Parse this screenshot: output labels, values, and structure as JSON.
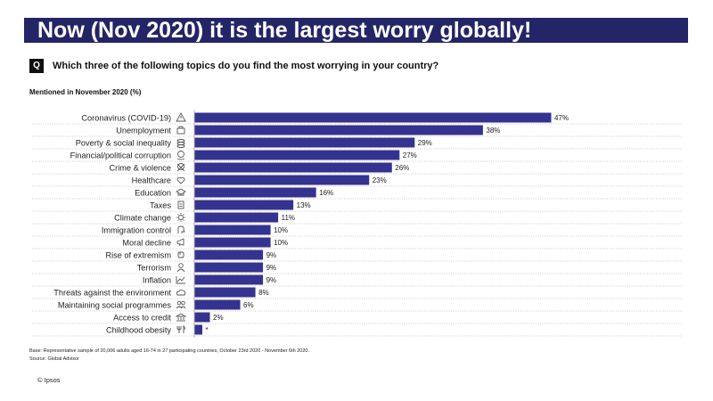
{
  "header": {
    "banner_title": "Now (Nov 2020) it is the largest worry globally!",
    "q_badge": "Q",
    "question": "Which three of the following topics do you find the most worrying in your country?",
    "subtitle": "Mentioned in November 2020 (%)"
  },
  "chart_data": {
    "type": "bar",
    "orientation": "horizontal",
    "title": "",
    "xlabel": "",
    "ylabel": "",
    "xlim": [
      0,
      50
    ],
    "grid": false,
    "legend": "none",
    "bar_color": "#34338f",
    "categories": [
      "Coronavirus (COVID-19)",
      "Unemployment",
      "Poverty & social inequality",
      "Financial/political corruption",
      "Crime & violence",
      "Healthcare",
      "Education",
      "Taxes",
      "Climate change",
      "Immigration control",
      "Moral decline",
      "Rise of extremism",
      "Terrorism",
      "Inflation",
      "Threats against the environment",
      "Maintaining social programmes",
      "Access to credit",
      "Childhood obesity"
    ],
    "values": [
      47,
      38,
      29,
      27,
      26,
      23,
      16,
      13,
      11,
      10,
      10,
      9,
      9,
      9,
      8,
      6,
      2,
      1
    ],
    "data_labels": [
      "47%",
      "38%",
      "29%",
      "27%",
      "26%",
      "23%",
      "16%",
      "13%",
      "11%",
      "10%",
      "10%",
      "9%",
      "9%",
      "9%",
      "8%",
      "6%",
      "2%",
      "*"
    ],
    "icons": [
      "warning-icon",
      "briefcase-icon",
      "coins-icon",
      "hand-money-icon",
      "skull-icon",
      "heart-hand-icon",
      "graduation-cap-icon",
      "document-icon",
      "sun-icon",
      "head-icon",
      "megaphone-icon",
      "fist-icon",
      "person-icon",
      "trend-chart-icon",
      "cloud-icon",
      "people-icon",
      "bank-icon",
      "fork-knife-icon"
    ]
  },
  "footer": {
    "base_note": "Base: Representative sample of 20,006 adults aged 16-74 in 27 participating countries, October 23rd 2020 - November 6th 2020.",
    "source_note": "Source: Global Advisor",
    "copyright": "© Ipsos"
  },
  "colors": {
    "banner": "#232566",
    "bar": "#34338f"
  }
}
